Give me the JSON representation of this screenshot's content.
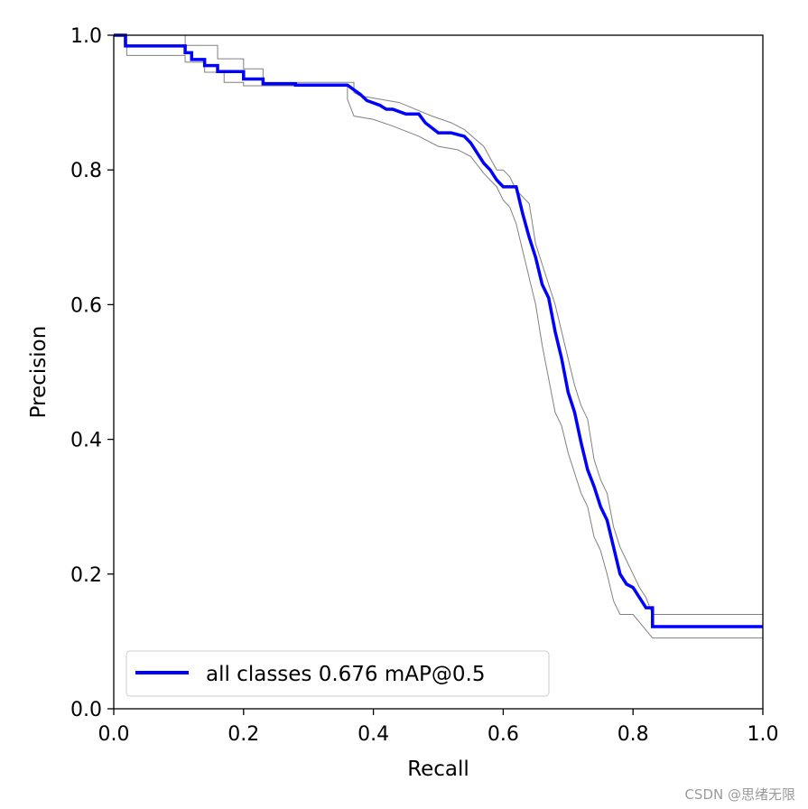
{
  "chart_data": {
    "type": "line",
    "title": "",
    "xlabel": "Recall",
    "ylabel": "Precision",
    "xlim": [
      0,
      1
    ],
    "ylim": [
      0,
      1
    ],
    "xticks": [
      "0.0",
      "0.2",
      "0.4",
      "0.6",
      "0.8",
      "1.0"
    ],
    "yticks": [
      "0.0",
      "0.2",
      "0.4",
      "0.6",
      "0.8",
      "1.0"
    ],
    "grid": false,
    "legend_position": "bottom-left",
    "series": [
      {
        "name": "all classes 0.676 mAP@0.5",
        "color": "#0000ff",
        "x": [
          0.0,
          0.018,
          0.018,
          0.11,
          0.11,
          0.12,
          0.12,
          0.14,
          0.14,
          0.16,
          0.16,
          0.17,
          0.17,
          0.2,
          0.2,
          0.23,
          0.23,
          0.28,
          0.28,
          0.36,
          0.36,
          0.38,
          0.39,
          0.41,
          0.42,
          0.43,
          0.45,
          0.47,
          0.48,
          0.5,
          0.52,
          0.54,
          0.55,
          0.56,
          0.57,
          0.58,
          0.59,
          0.6,
          0.62,
          0.63,
          0.64,
          0.65,
          0.66,
          0.67,
          0.68,
          0.69,
          0.7,
          0.71,
          0.72,
          0.73,
          0.74,
          0.75,
          0.76,
          0.77,
          0.78,
          0.79,
          0.8,
          0.81,
          0.82,
          0.83,
          0.83,
          1.0
        ],
        "y": [
          1.0,
          1.0,
          0.984,
          0.984,
          0.974,
          0.974,
          0.964,
          0.964,
          0.955,
          0.955,
          0.946,
          0.946,
          0.946,
          0.946,
          0.935,
          0.935,
          0.928,
          0.928,
          0.926,
          0.926,
          0.926,
          0.912,
          0.903,
          0.896,
          0.89,
          0.89,
          0.883,
          0.883,
          0.87,
          0.855,
          0.855,
          0.85,
          0.84,
          0.825,
          0.81,
          0.8,
          0.785,
          0.775,
          0.775,
          0.735,
          0.7,
          0.67,
          0.63,
          0.61,
          0.56,
          0.52,
          0.47,
          0.44,
          0.395,
          0.355,
          0.33,
          0.3,
          0.28,
          0.24,
          0.2,
          0.185,
          0.18,
          0.165,
          0.15,
          0.15,
          0.122,
          0.122
        ]
      },
      {
        "name": "",
        "color": "#808080",
        "x": [
          0.0,
          0.02,
          0.02,
          0.11,
          0.11,
          0.14,
          0.14,
          0.17,
          0.17,
          0.2,
          0.2,
          0.24,
          0.24,
          0.36,
          0.36,
          0.37,
          0.4,
          0.43,
          0.47,
          0.5,
          0.53,
          0.55,
          0.57,
          0.59,
          0.6,
          0.61,
          0.62,
          0.63,
          0.64,
          0.65,
          0.66,
          0.67,
          0.68,
          0.69,
          0.7,
          0.71,
          0.72,
          0.73,
          0.74,
          0.75,
          0.76,
          0.77,
          0.78,
          0.79,
          0.8,
          0.83,
          0.83,
          1.0
        ],
        "y": [
          1.0,
          1.0,
          0.97,
          0.97,
          0.96,
          0.96,
          0.945,
          0.945,
          0.93,
          0.93,
          0.925,
          0.925,
          0.925,
          0.925,
          0.905,
          0.88,
          0.875,
          0.865,
          0.85,
          0.835,
          0.83,
          0.82,
          0.795,
          0.775,
          0.755,
          0.745,
          0.72,
          0.68,
          0.64,
          0.6,
          0.54,
          0.49,
          0.44,
          0.42,
          0.38,
          0.35,
          0.32,
          0.3,
          0.255,
          0.235,
          0.2,
          0.16,
          0.14,
          0.14,
          0.14,
          0.105,
          0.105,
          0.105
        ]
      },
      {
        "name": "",
        "color": "#808080",
        "x": [
          0.0,
          0.02,
          0.02,
          0.11,
          0.11,
          0.16,
          0.16,
          0.2,
          0.2,
          0.23,
          0.23,
          0.37,
          0.37,
          0.38,
          0.41,
          0.44,
          0.49,
          0.52,
          0.54,
          0.57,
          0.59,
          0.6,
          0.61,
          0.62,
          0.64,
          0.65,
          0.66,
          0.67,
          0.68,
          0.69,
          0.7,
          0.71,
          0.72,
          0.73,
          0.74,
          0.75,
          0.76,
          0.77,
          0.78,
          0.79,
          0.8,
          0.81,
          0.82,
          0.83,
          0.83,
          1.0
        ],
        "y": [
          1.0,
          1.0,
          1.0,
          1.0,
          0.985,
          0.985,
          0.965,
          0.965,
          0.95,
          0.95,
          0.93,
          0.93,
          0.915,
          0.91,
          0.905,
          0.9,
          0.88,
          0.87,
          0.86,
          0.835,
          0.8,
          0.8,
          0.79,
          0.77,
          0.75,
          0.69,
          0.66,
          0.63,
          0.6,
          0.56,
          0.52,
          0.48,
          0.45,
          0.43,
          0.37,
          0.34,
          0.32,
          0.27,
          0.24,
          0.22,
          0.2,
          0.18,
          0.165,
          0.14,
          0.14,
          0.14
        ]
      }
    ]
  },
  "watermark": "CSDN @思绪无限"
}
